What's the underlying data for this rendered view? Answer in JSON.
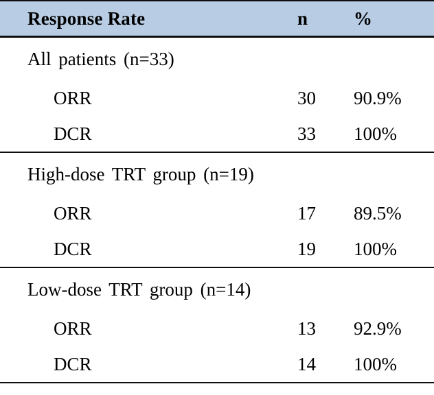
{
  "table": {
    "title": "Response Rate table",
    "header_bg": "#b8cce4",
    "rule_color": "#0d0d0d",
    "header": {
      "col1": "Response Rate",
      "col2": "n",
      "col3": "%"
    },
    "sections": [
      {
        "label": "All patients (n=33)",
        "rows": [
          {
            "name": "ORR",
            "n": "30",
            "pct": "90.9%"
          },
          {
            "name": "DCR",
            "n": "33",
            "pct": "100%"
          }
        ]
      },
      {
        "label": "High-dose TRT group (n=19)",
        "rows": [
          {
            "name": "ORR",
            "n": "17",
            "pct": "89.5%"
          },
          {
            "name": "DCR",
            "n": "19",
            "pct": "100%"
          }
        ]
      },
      {
        "label": "Low-dose TRT group (n=14)",
        "rows": [
          {
            "name": "ORR",
            "n": "13",
            "pct": "92.9%"
          },
          {
            "name": "DCR",
            "n": "14",
            "pct": "100%"
          }
        ]
      }
    ]
  },
  "chart_data": {
    "type": "table",
    "title": "Response Rate",
    "columns": [
      "Response Rate",
      "n",
      "%"
    ],
    "groups": [
      {
        "group": "All patients (n=33)",
        "ORR": {
          "n": 30,
          "pct": 90.9
        },
        "DCR": {
          "n": 33,
          "pct": 100
        }
      },
      {
        "group": "High-dose TRT group (n=19)",
        "ORR": {
          "n": 17,
          "pct": 89.5
        },
        "DCR": {
          "n": 19,
          "pct": 100
        }
      },
      {
        "group": "Low-dose TRT group (n=14)",
        "ORR": {
          "n": 13,
          "pct": 92.9
        },
        "DCR": {
          "n": 14,
          "pct": 100
        }
      }
    ]
  }
}
